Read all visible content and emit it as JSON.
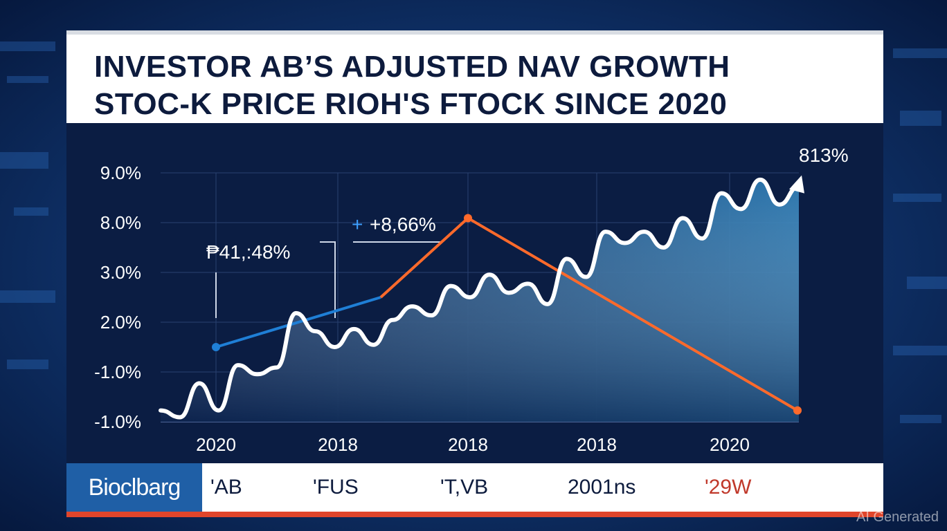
{
  "title": {
    "line1": "INVESTOR AB’S ADJUSTED NAV GROWTH",
    "line2": "STOC-K PRICE RIOH'S FTOCK SINCE 2020"
  },
  "chart_data": {
    "type": "line",
    "y_tick_labels": [
      "9.0%",
      "8.0%",
      "3.0%",
      "2.0%",
      "-1.0%",
      "-1.0%"
    ],
    "x_tick_labels": [
      "2020",
      "2018",
      "2018",
      "2018",
      "2020"
    ],
    "grid": true,
    "series": [
      {
        "values": [
          -1.0,
          -1.3,
          0.2,
          -1.0,
          1.0,
          0.6,
          0.9,
          3.3,
          2.5,
          1.8,
          2.6,
          1.9,
          3.0,
          3.6,
          3.2,
          4.5,
          4.0,
          5.0,
          4.2,
          4.6,
          3.7,
          5.7,
          4.9,
          6.9,
          6.4,
          6.9,
          6.2,
          7.5,
          6.6,
          8.6,
          7.9,
          9.2,
          8.1,
          8.9
        ]
      },
      {
        "values": [
          1.8,
          4.0,
          7.5,
          -1.0
        ]
      }
    ],
    "annotations": [
      "+8,66%",
      "₱41,:48%",
      "813%",
      "+"
    ],
    "colors": {
      "price_line": "#ffffff",
      "nav_line": "#1f7fd6",
      "nav_line_down": "#ff6a2b",
      "area_top": "#2f7fb8",
      "panel": "#0b1d43"
    }
  },
  "ticker": {
    "logo": "Bioclbarg",
    "items": [
      "'AB",
      "'FUS",
      "'T,VB",
      "2001ns",
      "'29W"
    ]
  },
  "watermark": "AI Generated"
}
